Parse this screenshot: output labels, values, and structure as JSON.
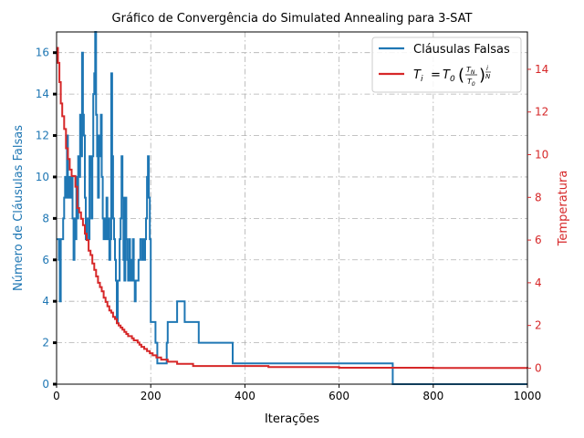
{
  "chart_data": {
    "type": "line",
    "title": "Gráfico de Convergência do Simulated Annealing para 3-SAT",
    "xlabel": "Iterações",
    "ylabel_left": "Número de Cláusulas Falsas",
    "ylabel_right": "Temperatura",
    "xlim": [
      0,
      1000
    ],
    "ylim_left": [
      0,
      17
    ],
    "ylim_right": [
      -0.75,
      15.75
    ],
    "x_ticks": [
      "0",
      "200",
      "400",
      "600",
      "800",
      "1000"
    ],
    "y_left_ticks": [
      "0",
      "2",
      "4",
      "6",
      "8",
      "10",
      "12",
      "14",
      "16"
    ],
    "y_right_ticks": [
      "0",
      "2",
      "4",
      "6",
      "8",
      "10",
      "12",
      "14"
    ],
    "grid": true,
    "legend_position": "top-right",
    "colors": {
      "falsas": "#1f77b4",
      "temperatura": "#d62728",
      "grid": "#b0b0b0"
    },
    "series": [
      {
        "name": "Cláusulas Falsas",
        "axis": "left",
        "points": [
          [
            0,
            7
          ],
          [
            4,
            7
          ],
          [
            5,
            6
          ],
          [
            7,
            4
          ],
          [
            9,
            7
          ],
          [
            12,
            7
          ],
          [
            14,
            8
          ],
          [
            16,
            9
          ],
          [
            18,
            10
          ],
          [
            20,
            9
          ],
          [
            22,
            12
          ],
          [
            24,
            10
          ],
          [
            26,
            9
          ],
          [
            28,
            10
          ],
          [
            30,
            9
          ],
          [
            32,
            10
          ],
          [
            34,
            8
          ],
          [
            36,
            6
          ],
          [
            38,
            8
          ],
          [
            40,
            7
          ],
          [
            42,
            10
          ],
          [
            44,
            8
          ],
          [
            46,
            11
          ],
          [
            48,
            10
          ],
          [
            50,
            13
          ],
          [
            52,
            11
          ],
          [
            54,
            16
          ],
          [
            56,
            13
          ],
          [
            58,
            12
          ],
          [
            60,
            9
          ],
          [
            62,
            7
          ],
          [
            64,
            8
          ],
          [
            66,
            8
          ],
          [
            68,
            7
          ],
          [
            70,
            11
          ],
          [
            72,
            10
          ],
          [
            74,
            8
          ],
          [
            76,
            11
          ],
          [
            78,
            14
          ],
          [
            80,
            15
          ],
          [
            82,
            17
          ],
          [
            84,
            13
          ],
          [
            86,
            11
          ],
          [
            88,
            9
          ],
          [
            90,
            12
          ],
          [
            92,
            11
          ],
          [
            94,
            13
          ],
          [
            96,
            10
          ],
          [
            98,
            8
          ],
          [
            100,
            7
          ],
          [
            102,
            8
          ],
          [
            104,
            7
          ],
          [
            106,
            9
          ],
          [
            108,
            7
          ],
          [
            110,
            8
          ],
          [
            112,
            6
          ],
          [
            114,
            7
          ],
          [
            116,
            15
          ],
          [
            118,
            11
          ],
          [
            120,
            8
          ],
          [
            122,
            7
          ],
          [
            124,
            6
          ],
          [
            126,
            5
          ],
          [
            128,
            3
          ],
          [
            130,
            5
          ],
          [
            132,
            5
          ],
          [
            134,
            7
          ],
          [
            136,
            8
          ],
          [
            138,
            11
          ],
          [
            140,
            9
          ],
          [
            142,
            6
          ],
          [
            144,
            5
          ],
          [
            146,
            9
          ],
          [
            148,
            7
          ],
          [
            150,
            6
          ],
          [
            152,
            5
          ],
          [
            154,
            7
          ],
          [
            156,
            5
          ],
          [
            158,
            6
          ],
          [
            160,
            5
          ],
          [
            162,
            7
          ],
          [
            164,
            5
          ],
          [
            166,
            4
          ],
          [
            168,
            5
          ],
          [
            170,
            5
          ],
          [
            172,
            5
          ],
          [
            174,
            6
          ],
          [
            176,
            6
          ],
          [
            178,
            7
          ],
          [
            180,
            7
          ],
          [
            182,
            6
          ],
          [
            184,
            7
          ],
          [
            186,
            6
          ],
          [
            188,
            7
          ],
          [
            190,
            8
          ],
          [
            192,
            10
          ],
          [
            194,
            11
          ],
          [
            196,
            9
          ],
          [
            198,
            7
          ],
          [
            200,
            3
          ],
          [
            208,
            3
          ],
          [
            210,
            2
          ],
          [
            214,
            1
          ],
          [
            232,
            1
          ],
          [
            234,
            2
          ],
          [
            236,
            3
          ],
          [
            254,
            3
          ],
          [
            256,
            4
          ],
          [
            270,
            4
          ],
          [
            272,
            3
          ],
          [
            300,
            3
          ],
          [
            302,
            2
          ],
          [
            372,
            2
          ],
          [
            374,
            1
          ],
          [
            448,
            1
          ],
          [
            450,
            1
          ],
          [
            712,
            1
          ],
          [
            714,
            0
          ],
          [
            1000,
            0
          ]
        ]
      },
      {
        "name": "T_i = T_0 (T_N / T_0)^(i/N)",
        "axis": "right",
        "points": [
          [
            0,
            15
          ],
          [
            3,
            14.3
          ],
          [
            6,
            13.4
          ],
          [
            9,
            12.4
          ],
          [
            12,
            11.8
          ],
          [
            16,
            11.2
          ],
          [
            20,
            10.3
          ],
          [
            24,
            9.8
          ],
          [
            28,
            9.3
          ],
          [
            32,
            9.0
          ],
          [
            36,
            9.0
          ],
          [
            40,
            8.5
          ],
          [
            44,
            7.5
          ],
          [
            48,
            7.3
          ],
          [
            52,
            7.0
          ],
          [
            56,
            6.7
          ],
          [
            60,
            6.3
          ],
          [
            64,
            6.0
          ],
          [
            68,
            5.5
          ],
          [
            72,
            5.3
          ],
          [
            76,
            4.9
          ],
          [
            80,
            4.6
          ],
          [
            84,
            4.3
          ],
          [
            88,
            4.0
          ],
          [
            92,
            3.8
          ],
          [
            96,
            3.6
          ],
          [
            100,
            3.3
          ],
          [
            104,
            3.1
          ],
          [
            108,
            2.9
          ],
          [
            112,
            2.7
          ],
          [
            116,
            2.6
          ],
          [
            120,
            2.4
          ],
          [
            124,
            2.3
          ],
          [
            128,
            2.1
          ],
          [
            132,
            2.0
          ],
          [
            136,
            1.9
          ],
          [
            140,
            1.8
          ],
          [
            144,
            1.7
          ],
          [
            148,
            1.6
          ],
          [
            152,
            1.5
          ],
          [
            156,
            1.5
          ],
          [
            160,
            1.4
          ],
          [
            164,
            1.3
          ],
          [
            168,
            1.3
          ],
          [
            172,
            1.2
          ],
          [
            176,
            1.1
          ],
          [
            180,
            1.0
          ],
          [
            186,
            0.9
          ],
          [
            192,
            0.8
          ],
          [
            198,
            0.7
          ],
          [
            204,
            0.6
          ],
          [
            212,
            0.5
          ],
          [
            222,
            0.4
          ],
          [
            236,
            0.3
          ],
          [
            256,
            0.2
          ],
          [
            290,
            0.1
          ],
          [
            340,
            0.1
          ],
          [
            450,
            0.05
          ],
          [
            600,
            0.02
          ],
          [
            800,
            0.01
          ],
          [
            1000,
            0
          ]
        ]
      }
    ]
  }
}
